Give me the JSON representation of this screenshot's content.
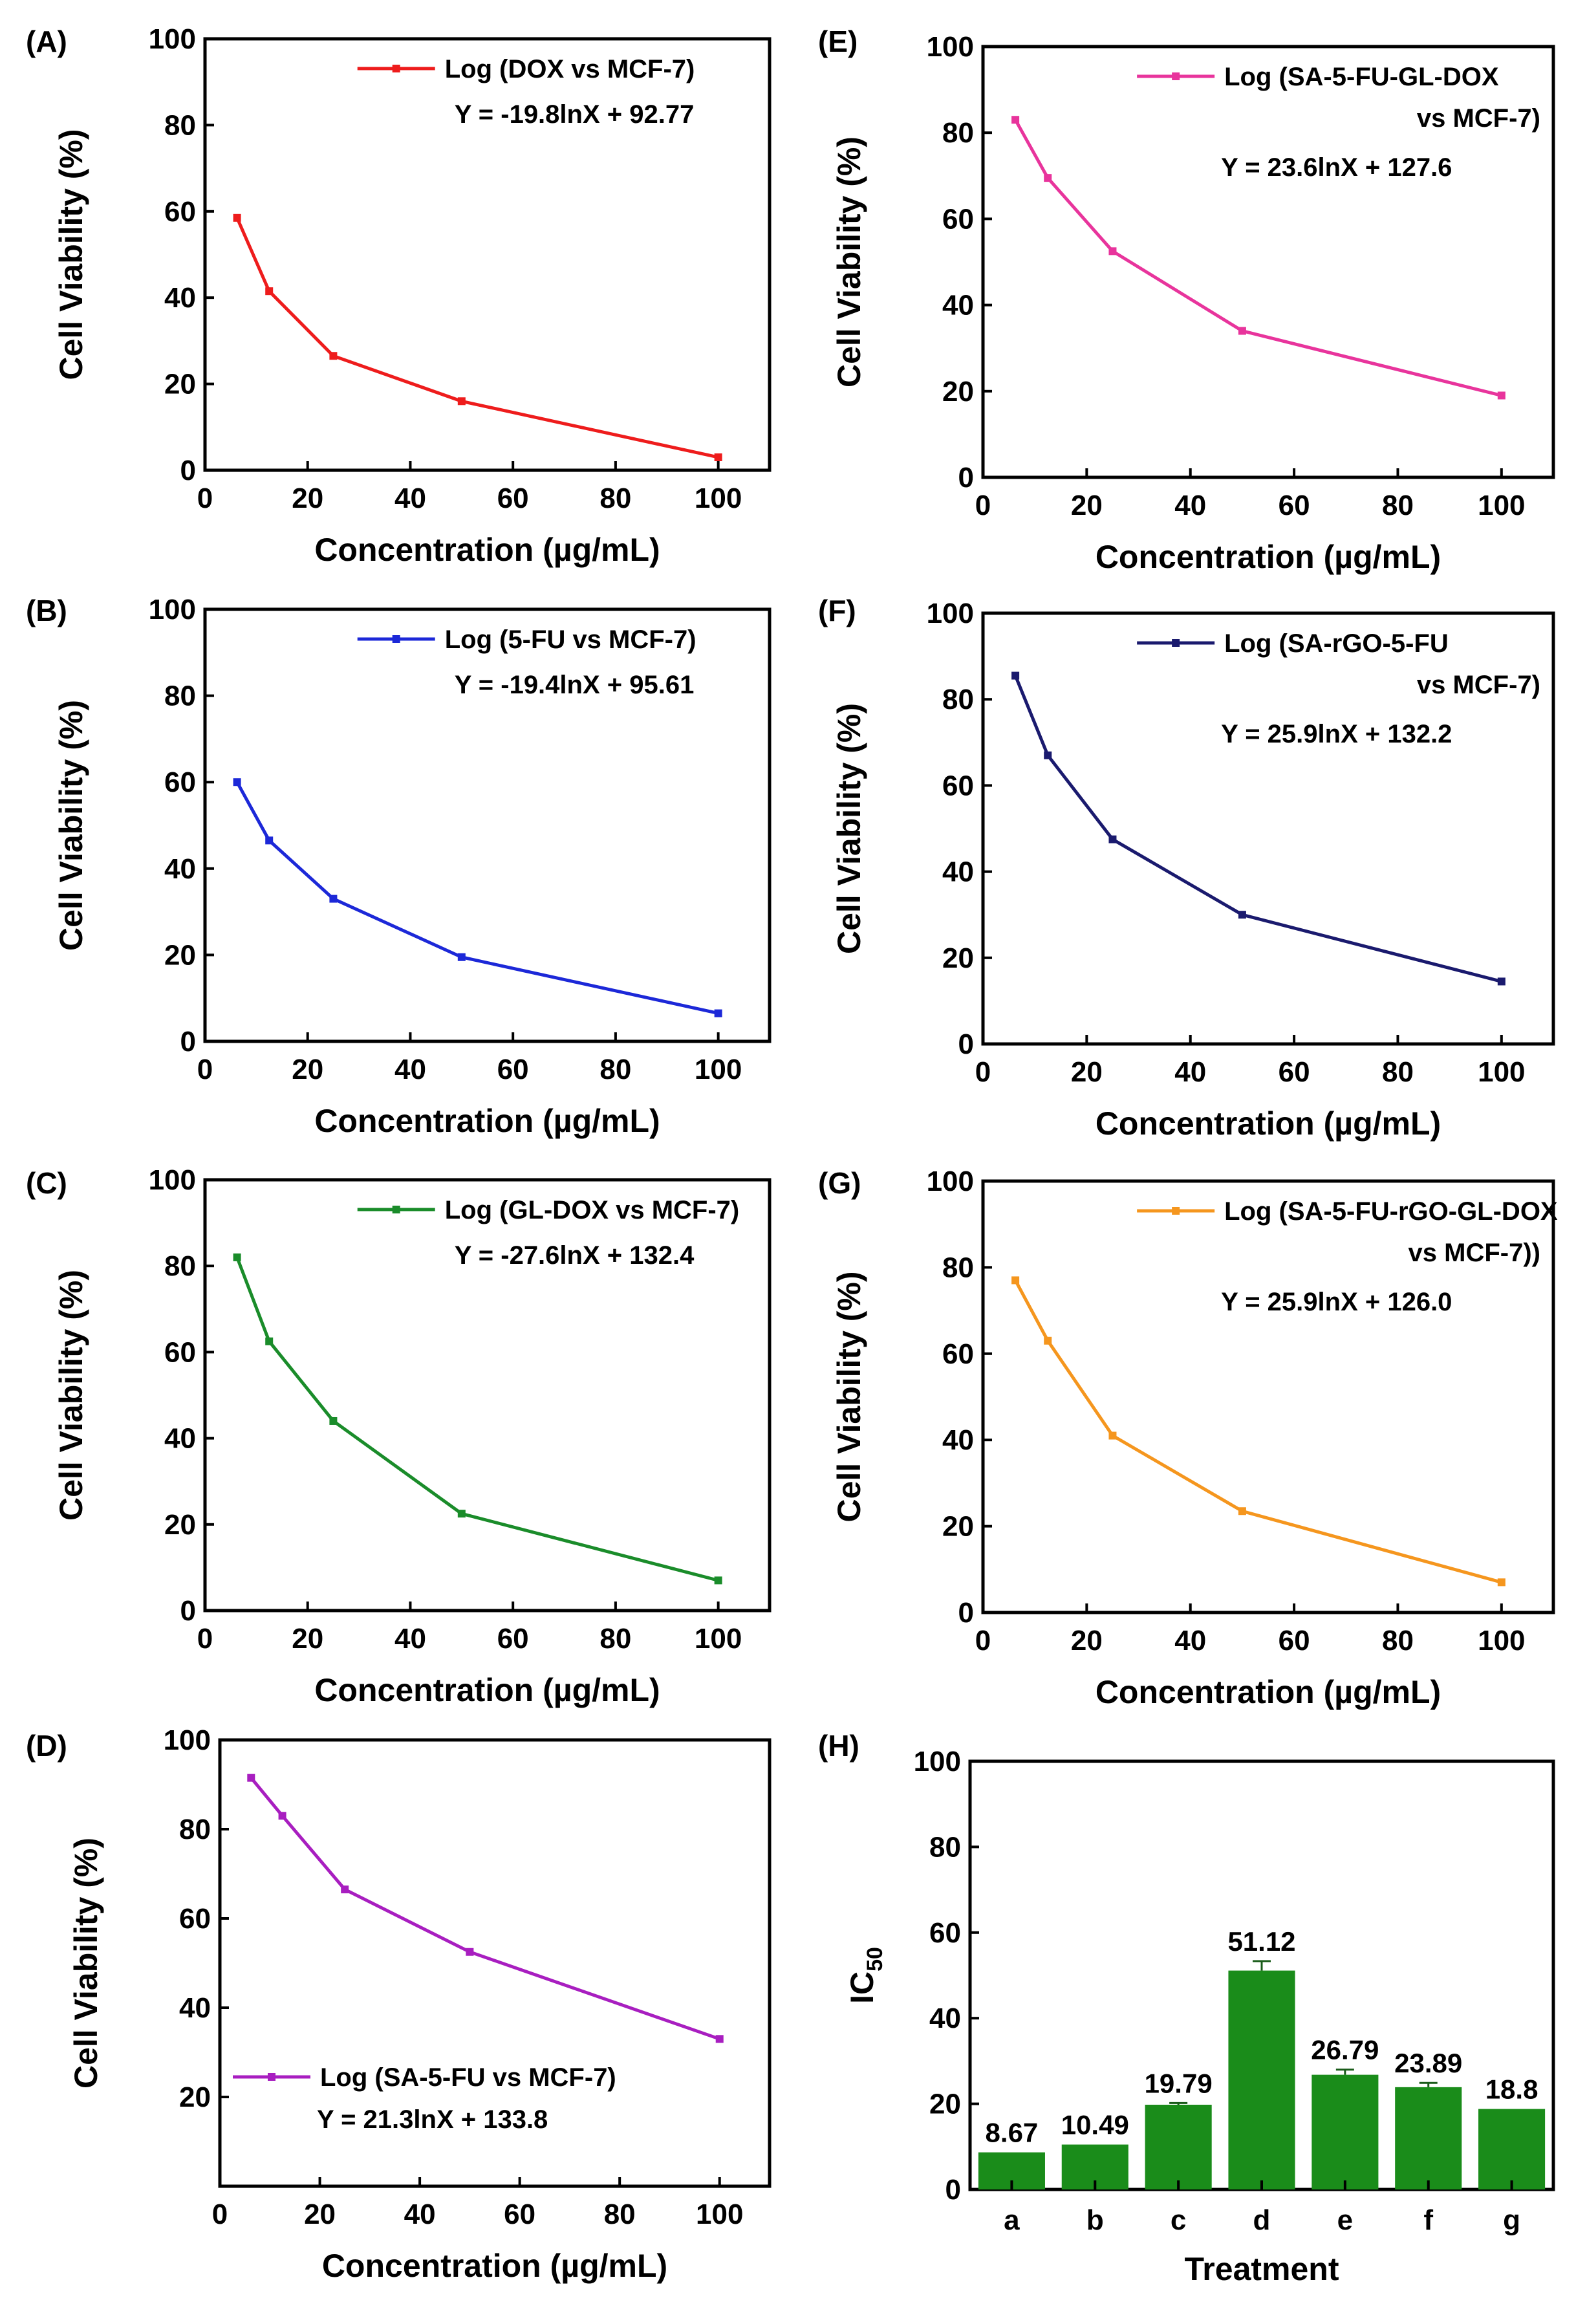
{
  "chart_data": [
    {
      "id": "A",
      "panel_label": "(A)",
      "type": "line",
      "series": [
        {
          "name": "Log (DOX vs MCF-7)",
          "color": "#ee1c1c",
          "x": [
            6.25,
            12.5,
            25,
            50,
            100
          ],
          "y": [
            58.5,
            41.5,
            26.5,
            16,
            3
          ]
        }
      ],
      "equation": "Y = -19.8lnX + 92.77",
      "xlabel": "Concentration (µg/mL)",
      "ylabel": "Cell Viability (%)",
      "xlim": [
        0,
        110
      ],
      "ylim": [
        0,
        100
      ],
      "xticks": [
        "0",
        "20",
        "40",
        "60",
        "80",
        "100"
      ],
      "yticks": [
        "0",
        "20",
        "40",
        "60",
        "80",
        "100"
      ],
      "legend_position": "top-right"
    },
    {
      "id": "E",
      "panel_label": "(E)",
      "type": "line",
      "series": [
        {
          "name": "Log (SA-5-FU-GL-DOX",
          "name_line2": "vs MCF-7)",
          "color": "#e8349c",
          "x": [
            6.25,
            12.5,
            25,
            50,
            100
          ],
          "y": [
            83,
            69.5,
            52.5,
            34,
            19
          ]
        }
      ],
      "equation": "Y = 23.6lnX + 127.6",
      "xlabel": "Concentration (µg/mL)",
      "ylabel": "Cell Viability (%)",
      "xlim": [
        0,
        110
      ],
      "ylim": [
        0,
        100
      ],
      "xticks": [
        "0",
        "20",
        "40",
        "60",
        "80",
        "100"
      ],
      "yticks": [
        "0",
        "20",
        "40",
        "60",
        "80",
        "100"
      ],
      "legend_position": "top-right"
    },
    {
      "id": "B",
      "panel_label": "(B)",
      "type": "line",
      "series": [
        {
          "name": "Log (5-FU vs MCF-7)",
          "color": "#1c28d8",
          "x": [
            6.25,
            12.5,
            25,
            50,
            100
          ],
          "y": [
            60,
            46.5,
            33,
            19.5,
            6.5
          ]
        }
      ],
      "equation": "Y = -19.4lnX + 95.61",
      "xlabel": "Concentration (µg/mL)",
      "ylabel": "Cell Viability (%)",
      "xlim": [
        0,
        110
      ],
      "ylim": [
        0,
        100
      ],
      "xticks": [
        "0",
        "20",
        "40",
        "60",
        "80",
        "100"
      ],
      "yticks": [
        "0",
        "20",
        "40",
        "60",
        "80",
        "100"
      ],
      "legend_position": "top-right"
    },
    {
      "id": "F",
      "panel_label": "(F)",
      "type": "line",
      "series": [
        {
          "name": "Log (SA-rGO-5-FU",
          "name_line2": "vs MCF-7)",
          "color": "#1a1a6e",
          "x": [
            6.25,
            12.5,
            25,
            50,
            100
          ],
          "y": [
            85.5,
            67,
            47.5,
            30,
            14.5
          ]
        }
      ],
      "equation": "Y = 25.9lnX + 132.2",
      "xlabel": "Concentration (µg/mL)",
      "ylabel": "Cell Viability (%)",
      "xlim": [
        0,
        110
      ],
      "ylim": [
        0,
        100
      ],
      "xticks": [
        "0",
        "20",
        "40",
        "60",
        "80",
        "100"
      ],
      "yticks": [
        "0",
        "20",
        "40",
        "60",
        "80",
        "100"
      ],
      "legend_position": "top-right"
    },
    {
      "id": "C",
      "panel_label": "(C)",
      "type": "line",
      "series": [
        {
          "name": "Log (GL-DOX vs MCF-7)",
          "color": "#1a8c2a",
          "x": [
            6.25,
            12.5,
            25,
            50,
            100
          ],
          "y": [
            82,
            62.5,
            44,
            22.5,
            7
          ]
        }
      ],
      "equation": "Y = -27.6lnX + 132.4",
      "xlabel": "Concentration (µg/mL)",
      "ylabel": "Cell Viability (%)",
      "xlim": [
        0,
        110
      ],
      "ylim": [
        0,
        100
      ],
      "xticks": [
        "0",
        "20",
        "40",
        "60",
        "80",
        "100"
      ],
      "yticks": [
        "0",
        "20",
        "40",
        "60",
        "80",
        "100"
      ],
      "legend_position": "top-right"
    },
    {
      "id": "G",
      "panel_label": "(G)",
      "type": "line",
      "series": [
        {
          "name": "Log (SA-5-FU-rGO-GL-DOX",
          "name_line2": "vs MCF-7))",
          "color": "#f5961e",
          "x": [
            6.25,
            12.5,
            25,
            50,
            100
          ],
          "y": [
            77,
            63,
            41,
            23.5,
            7
          ]
        }
      ],
      "equation": "Y = 25.9lnX + 126.0",
      "xlabel": "Concentration (µg/mL)",
      "ylabel": "Cell Viability (%)",
      "xlim": [
        0,
        110
      ],
      "ylim": [
        0,
        100
      ],
      "xticks": [
        "0",
        "20",
        "40",
        "60",
        "80",
        "100"
      ],
      "yticks": [
        "0",
        "20",
        "40",
        "60",
        "80",
        "100"
      ],
      "legend_position": "top-right"
    },
    {
      "id": "D",
      "panel_label": "(D)",
      "type": "line",
      "series": [
        {
          "name": "Log (SA-5-FU vs MCF-7)",
          "color": "#a81ec0",
          "x": [
            6.25,
            12.5,
            25,
            50,
            100
          ],
          "y": [
            91.5,
            83,
            66.5,
            52.5,
            33
          ]
        }
      ],
      "equation": "Y = 21.3lnX + 133.8",
      "xlabel": "Concentration (µg/mL)",
      "ylabel": "Cell Viability (%)",
      "xlim": [
        0,
        110
      ],
      "ylim": [
        0,
        100
      ],
      "xticks": [
        "0",
        "20",
        "40",
        "60",
        "80",
        "100"
      ],
      "yticks": [
        "20",
        "40",
        "60",
        "80",
        "100"
      ],
      "legend_position": "bottom-left"
    },
    {
      "id": "H",
      "panel_label": "(H)",
      "type": "bar",
      "categories": [
        "a",
        "b",
        "c",
        "d",
        "e",
        "f",
        "g"
      ],
      "values": [
        8.67,
        10.49,
        19.79,
        51.12,
        26.79,
        23.89,
        18.8
      ],
      "value_labels": [
        "8.67",
        "10.49",
        "19.79",
        "51.12",
        "26.79",
        "23.89",
        "18.8"
      ],
      "errors": [
        0,
        0,
        0.4,
        2.2,
        1.2,
        1.0,
        0
      ],
      "color": "#1a8c1a",
      "xlabel": "Treatment",
      "ylabel_main": "IC",
      "ylabel_sub": "50",
      "ylim": [
        0,
        100
      ],
      "yticks": [
        "0",
        "20",
        "40",
        "60",
        "80",
        "100"
      ]
    }
  ]
}
